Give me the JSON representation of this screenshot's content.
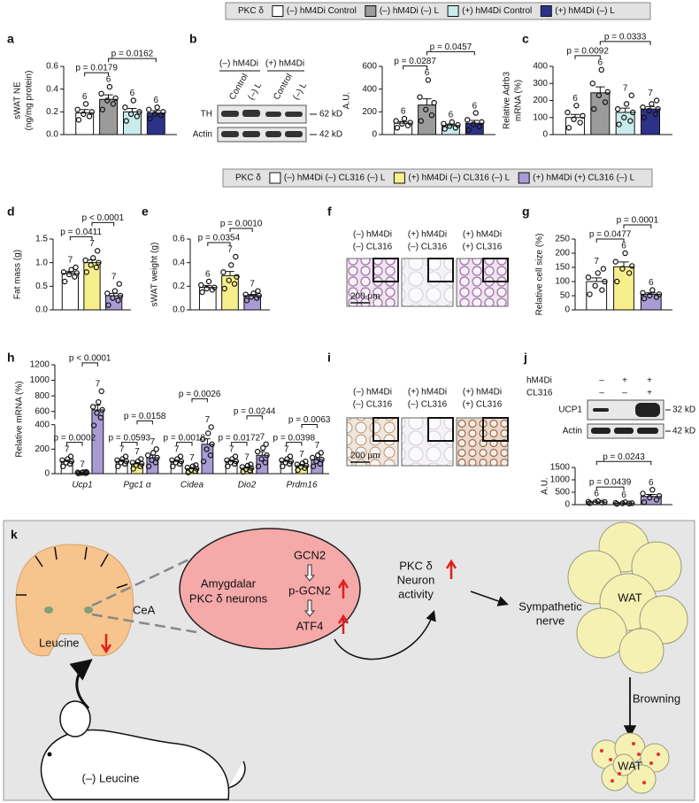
{
  "legends": [
    {
      "title": "PKC δ",
      "items": [
        {
          "label": "(–) hM4Di Control",
          "color": "#ffffff"
        },
        {
          "label": "(–) hM4Di (–) L",
          "color": "#9b9b9b"
        },
        {
          "label": "(+) hM4Di Control",
          "color": "#c9ecea"
        },
        {
          "label": "(+) hM4Di (–) L",
          "color": "#2d3289"
        }
      ]
    },
    {
      "title": "PKC δ",
      "items": [
        {
          "label": "(–) hM4Di (–) CL316 (–) L",
          "color": "#ffffff"
        },
        {
          "label": "(+) hM4Di (–) CL316 (–) L",
          "color": "#f6ef8c"
        },
        {
          "label": "(+) hM4Di (+) CL316 (–) L",
          "color": "#a99bd3"
        }
      ]
    }
  ],
  "blots": [
    {
      "panel": "b",
      "groups": [
        "(–) hM4Di",
        "(+) hM4Di"
      ],
      "lanes": [
        "Control",
        "(–) L",
        "Control",
        "(–) L"
      ],
      "rows": [
        "TH",
        "Actin"
      ],
      "sizes": [
        "62 kD",
        "42 kD"
      ]
    },
    {
      "panel": "j",
      "conditions": [
        {
          "name": "hM4Di",
          "signs": [
            "–",
            "+",
            "+"
          ]
        },
        {
          "name": "CL316",
          "signs": [
            "–",
            "–",
            "+"
          ]
        }
      ],
      "rows": [
        "UCP1",
        "Actin"
      ],
      "sizes": [
        "32 kD",
        "42 kD"
      ]
    }
  ],
  "histology": [
    {
      "panel": "f",
      "conditions": [
        [
          "(–) hM4Di",
          "(–) CL316"
        ],
        [
          "(+) hM4Di",
          "(–) CL316"
        ],
        [
          "(+) hM4Di",
          "(+) CL316"
        ]
      ],
      "scale": "200 μm"
    },
    {
      "panel": "i",
      "conditions": [
        [
          "(–) hM4Di",
          "(–) CL316"
        ],
        [
          "(+) hM4Di",
          "(–) CL316"
        ],
        [
          "(+) hM4Di",
          "(+) CL316"
        ]
      ],
      "scale": "200 μm"
    }
  ],
  "diagram": {
    "panel": "k",
    "region": "CeA",
    "leucine": "Leucine",
    "diet": "(–) Leucine",
    "neurons": [
      "Amygdalar",
      "PKC δ neurons"
    ],
    "pathway": [
      "GCN2",
      "p-GCN2",
      "ATF4"
    ],
    "activity": [
      "PKC δ",
      "Neuron",
      "activity"
    ],
    "nerve": [
      "Sympathetic",
      "nerve"
    ],
    "browning": "Browning",
    "tissue": [
      "WAT",
      "WAT"
    ]
  },
  "chart_data": [
    {
      "panel": "a",
      "type": "bar",
      "ylabel": [
        "sWAT NE",
        "(ng/mg protein)"
      ],
      "ylim": [
        0,
        0.6
      ],
      "yticks": [
        {
          "value": 0,
          "label": "0.0"
        },
        0.2,
        0.4,
        0.6
      ],
      "colors": [
        "#ffffff",
        "#9b9b9b",
        "#c9ecea",
        "#2d3289"
      ],
      "values": [
        0.19,
        0.31,
        0.2,
        0.19
      ],
      "errors": [
        0.03,
        0.04,
        0.03,
        0.02
      ],
      "n": [
        6,
        6,
        6,
        6
      ],
      "points": [
        [
          0.13,
          0.16,
          0.18,
          0.2,
          0.22,
          0.27
        ],
        [
          0.22,
          0.27,
          0.3,
          0.32,
          0.36,
          0.42
        ],
        [
          0.12,
          0.16,
          0.18,
          0.2,
          0.24,
          0.3
        ],
        [
          0.14,
          0.17,
          0.18,
          0.2,
          0.22,
          0.24
        ]
      ],
      "annotations": [
        {
          "from": 0,
          "to": 1,
          "label": "p = 0.0179"
        },
        {
          "from": 1,
          "to": 3,
          "label": "p = 0.0162"
        }
      ]
    },
    {
      "type": "bar",
      "ylabel": [
        "A.U."
      ],
      "ylim": [
        0,
        600
      ],
      "yticks": [
        0,
        200,
        400,
        600
      ],
      "colors": [
        "#ffffff",
        "#9b9b9b",
        "#c9ecea",
        "#2d3289"
      ],
      "values": [
        100,
        260,
        80,
        100
      ],
      "errors": [
        15,
        55,
        12,
        25
      ],
      "n": [
        6,
        6,
        6,
        6
      ],
      "points": [
        [
          60,
          80,
          95,
          105,
          120,
          140
        ],
        [
          120,
          170,
          220,
          280,
          330,
          480
        ],
        [
          50,
          60,
          75,
          85,
          95,
          110
        ],
        [
          40,
          70,
          90,
          110,
          130,
          190
        ]
      ],
      "annotations": [
        {
          "from": 0,
          "to": 1,
          "label": "p = 0.0287"
        },
        {
          "from": 1,
          "to": 3,
          "label": "p = 0.0457"
        }
      ]
    },
    {
      "panel": "c",
      "type": "bar",
      "ylabel": [
        "Relative Adrb3",
        "mRNA (%)"
      ],
      "ylim": [
        0,
        400
      ],
      "yticks": [
        0,
        100,
        200,
        300,
        400
      ],
      "colors": [
        "#ffffff",
        "#9b9b9b",
        "#c9ecea",
        "#2d3289"
      ],
      "values": [
        100,
        245,
        130,
        150
      ],
      "errors": [
        18,
        35,
        25,
        14
      ],
      "n": [
        6,
        6,
        7,
        7
      ],
      "points": [
        [
          40,
          70,
          90,
          110,
          130,
          170
        ],
        [
          150,
          190,
          230,
          250,
          300,
          380
        ],
        [
          60,
          80,
          100,
          130,
          150,
          180,
          230
        ],
        [
          100,
          120,
          140,
          150,
          160,
          180,
          200
        ]
      ],
      "annotations": [
        {
          "from": 0,
          "to": 1,
          "label": "p = 0.0092"
        },
        {
          "from": 1,
          "to": 3,
          "label": "p = 0.0333"
        }
      ]
    },
    {
      "panel": "d",
      "type": "bar",
      "ylabel": [
        "Fat mass (g)"
      ],
      "ylim": [
        0,
        1.5
      ],
      "yticks": [
        {
          "value": 0,
          "label": "0.0"
        },
        0.5,
        {
          "value": 1,
          "label": "1.0"
        },
        1.5
      ],
      "colors": [
        "#ffffff",
        "#f6ef8c",
        "#a99bd3"
      ],
      "values": [
        0.77,
        1.0,
        0.3
      ],
      "errors": [
        0.04,
        0.06,
        0.05
      ],
      "n": [
        7,
        7,
        7
      ],
      "points": [
        [
          0.6,
          0.7,
          0.75,
          0.78,
          0.8,
          0.85,
          0.9
        ],
        [
          0.8,
          0.9,
          0.95,
          1.0,
          1.05,
          1.1,
          1.25
        ],
        [
          0.1,
          0.2,
          0.25,
          0.3,
          0.35,
          0.4,
          0.55
        ]
      ],
      "annotations": [
        {
          "from": 0,
          "to": 1,
          "label": "p = 0.0411"
        },
        {
          "from": 1,
          "to": 2,
          "label": "p < 0.0001"
        }
      ]
    },
    {
      "panel": "e",
      "type": "bar",
      "ylabel": [
        "sWAT weight (g)"
      ],
      "ylim": [
        0,
        0.6
      ],
      "yticks": [
        {
          "value": 0,
          "label": "0.0"
        },
        0.2,
        0.4,
        0.6
      ],
      "colors": [
        "#ffffff",
        "#f6ef8c",
        "#a99bd3"
      ],
      "values": [
        0.19,
        0.29,
        0.12
      ],
      "errors": [
        0.015,
        0.035,
        0.01
      ],
      "n": [
        6,
        7,
        7
      ],
      "points": [
        [
          0.15,
          0.17,
          0.18,
          0.19,
          0.21,
          0.24
        ],
        [
          0.18,
          0.22,
          0.25,
          0.28,
          0.32,
          0.38,
          0.45
        ],
        [
          0.08,
          0.1,
          0.11,
          0.12,
          0.13,
          0.14,
          0.16
        ]
      ],
      "annotations": [
        {
          "from": 0,
          "to": 1,
          "label": "p = 0.0354"
        },
        {
          "from": 1,
          "to": 2,
          "label": "p = 0.0010"
        }
      ]
    },
    {
      "panel": "g",
      "type": "bar",
      "ylabel": [
        "Relative cell size (%)"
      ],
      "ylim": [
        0,
        250
      ],
      "yticks": [
        0,
        50,
        100,
        150,
        200,
        250
      ],
      "colors": [
        "#ffffff",
        "#f6ef8c",
        "#a99bd3"
      ],
      "values": [
        100,
        152,
        55
      ],
      "errors": [
        13,
        17,
        5
      ],
      "n": [
        7,
        6,
        6
      ],
      "points": [
        [
          55,
          70,
          85,
          100,
          115,
          130,
          145
        ],
        [
          100,
          130,
          145,
          155,
          170,
          200
        ],
        [
          40,
          45,
          50,
          55,
          60,
          70
        ]
      ],
      "annotations": [
        {
          "from": 0,
          "to": 1,
          "label": "p = 0.0477"
        },
        {
          "from": 1,
          "to": 2,
          "label": "p = 0.0001"
        }
      ]
    },
    {
      "panel": "h",
      "type": "bar",
      "ylabel": [
        "Relative mRNA (%)"
      ],
      "ylim": [
        0,
        1200
      ],
      "axis_break": [
        400,
        500
      ],
      "yticks": [
        0,
        200,
        400,
        600,
        800,
        1000,
        1200
      ],
      "categories": [
        "Ucp1",
        "Pgc1 α",
        "Cidea",
        "Dio2",
        "Prdm16"
      ],
      "series": [
        {
          "color": "#ffffff",
          "values": [
            100,
            100,
            100,
            100,
            100
          ],
          "errors": [
            10,
            12,
            10,
            10,
            10
          ],
          "n": [
            7,
            7,
            7,
            7,
            7
          ],
          "points": [
            [
              60,
              80,
              90,
              100,
              110,
              120,
              140
            ],
            [
              60,
              80,
              90,
              100,
              110,
              120,
              140
            ],
            [
              60,
              80,
              90,
              100,
              110,
              120,
              140
            ],
            [
              60,
              80,
              90,
              100,
              110,
              120,
              140
            ],
            [
              60,
              80,
              90,
              100,
              110,
              120,
              140
            ]
          ]
        },
        {
          "color": "#f6ef8c",
          "values": [
            8,
            80,
            40,
            45,
            65
          ],
          "errors": [
            2,
            12,
            10,
            10,
            10
          ],
          "n": [
            7,
            7,
            7,
            7,
            7
          ],
          "points": [
            [
              2,
              4,
              6,
              8,
              10,
              12,
              14
            ],
            [
              40,
              60,
              70,
              80,
              90,
              100,
              120
            ],
            [
              10,
              20,
              30,
              40,
              50,
              60,
              70
            ],
            [
              15,
              25,
              35,
              45,
              55,
              65,
              75
            ],
            [
              30,
              45,
              55,
              65,
              75,
              85,
              100
            ]
          ]
        },
        {
          "color": "#a99bd3",
          "values": [
            620,
            130,
            240,
            150,
            115
          ],
          "errors": [
            60,
            20,
            45,
            30,
            15
          ],
          "n": [
            7,
            7,
            7,
            7,
            7
          ],
          "points": [
            [
              420,
              520,
              580,
              620,
              660,
              720,
              860
            ],
            [
              60,
              90,
              110,
              130,
              150,
              170,
              200
            ],
            [
              100,
              150,
              200,
              240,
              280,
              330,
              380
            ],
            [
              60,
              90,
              120,
              150,
              180,
              210,
              240
            ],
            [
              60,
              80,
              100,
              115,
              130,
              150,
              170
            ]
          ]
        }
      ],
      "annotations": [
        {
          "category": 0,
          "from": 0,
          "to": 1,
          "label": "p = 0.0002"
        },
        {
          "category": 0,
          "from": 1,
          "to": 2,
          "label": "p < 0.0001"
        },
        {
          "category": 1,
          "from": 0,
          "to": 1,
          "label": "p = 0.0593"
        },
        {
          "category": 1,
          "from": 1,
          "to": 2,
          "label": "p = 0.0158"
        },
        {
          "category": 2,
          "from": 0,
          "to": 1,
          "label": "p = 0.0018"
        },
        {
          "category": 2,
          "from": 1,
          "to": 2,
          "label": "p = 0.0026"
        },
        {
          "category": 3,
          "from": 0,
          "to": 1,
          "label": "p = 0.0172"
        },
        {
          "category": 3,
          "from": 1,
          "to": 2,
          "label": "p = 0.0244"
        },
        {
          "category": 4,
          "from": 0,
          "to": 1,
          "label": "p = 0.0398"
        },
        {
          "category": 4,
          "from": 1,
          "to": 2,
          "label": "p = 0.0063"
        }
      ]
    },
    {
      "type": "bar",
      "ylabel": [
        "A.U."
      ],
      "ylim": [
        0,
        1500
      ],
      "yticks": [
        0,
        500,
        1000,
        1500
      ],
      "colors": [
        "#ffffff",
        "#f6ef8c",
        "#a99bd3"
      ],
      "values": [
        100,
        60,
        330
      ],
      "errors": [
        12,
        10,
        80
      ],
      "n": [
        6,
        6,
        6
      ],
      "points": [
        [
          60,
          80,
          95,
          105,
          120,
          140
        ],
        [
          30,
          45,
          55,
          60,
          70,
          100
        ],
        [
          100,
          200,
          280,
          350,
          450,
          600
        ]
      ],
      "annotations": [
        {
          "from": 0,
          "to": 1,
          "label": "p = 0.0439"
        },
        {
          "from": 0,
          "to": 2,
          "label": "p = 0.0243"
        }
      ]
    }
  ]
}
